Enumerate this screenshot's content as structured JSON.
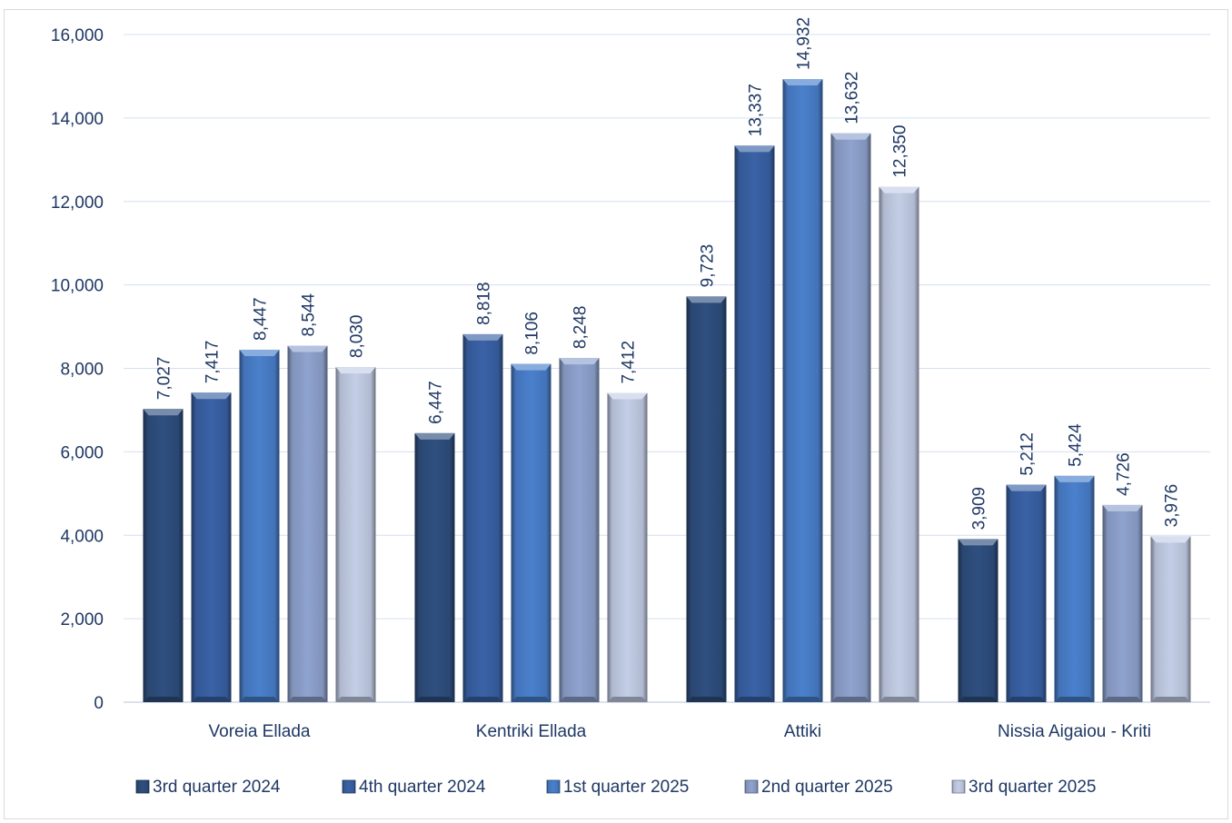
{
  "chart_data": {
    "type": "bar",
    "categories": [
      "Voreia Ellada",
      "Kentriki Ellada",
      "Attiki",
      "Nissia Aigaiou - Kriti"
    ],
    "series": [
      {
        "name": "3rd quarter 2024",
        "values": [
          7027,
          6447,
          9723,
          3909
        ],
        "color": "#2f4f7f"
      },
      {
        "name": "4th quarter 2024",
        "values": [
          7417,
          8818,
          13337,
          5212
        ],
        "color": "#3a62a6"
      },
      {
        "name": "1st quarter 2025",
        "values": [
          8447,
          8106,
          14932,
          5424
        ],
        "color": "#4a80cc"
      },
      {
        "name": "2nd quarter 2025",
        "values": [
          8544,
          8248,
          13632,
          4726
        ],
        "color": "#8fa3cf"
      },
      {
        "name": "3rd quarter 2025",
        "values": [
          8030,
          7412,
          12350,
          3976
        ],
        "color": "#c3cee6"
      }
    ],
    "data_labels": [
      [
        "7,027",
        "6,447",
        "9,723",
        "3,909"
      ],
      [
        "7,417",
        "8,818",
        "13,337",
        "5,212"
      ],
      [
        "8,447",
        "8,106",
        "14,932",
        "5,424"
      ],
      [
        "8,544",
        "8,248",
        "13,632",
        "4,726"
      ],
      [
        "8,030",
        "7,412",
        "12,350",
        "3,976"
      ]
    ],
    "y_ticks": [
      0,
      2000,
      4000,
      6000,
      8000,
      10000,
      12000,
      14000,
      16000
    ],
    "y_tick_labels": [
      "0",
      "2,000",
      "4,000",
      "6,000",
      "8,000",
      "10,000",
      "12,000",
      "14,000",
      "16,000"
    ],
    "ylim": [
      0,
      16000
    ],
    "grid": true,
    "legend_position": "bottom"
  }
}
